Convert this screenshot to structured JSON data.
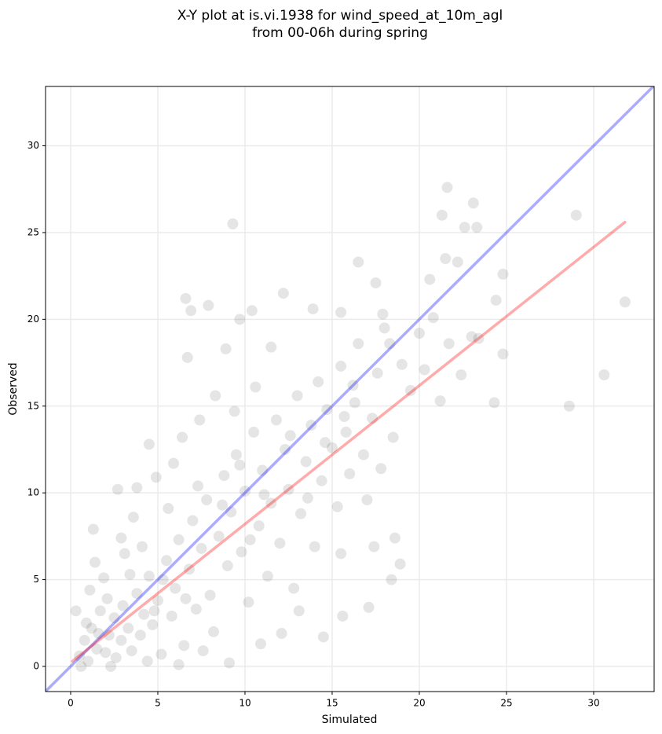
{
  "chart_data": {
    "type": "scatter",
    "title": [
      "X-Y plot at is.vi.1938 for wind_speed_at_10m_agl",
      "from 00-06h during spring"
    ],
    "xlabel": "Simulated",
    "ylabel": "Observed",
    "xlim": [
      -1.44,
      33.47
    ],
    "ylim": [
      -1.45,
      33.42
    ],
    "xticks": [
      0,
      5,
      10,
      15,
      20,
      25,
      30
    ],
    "yticks": [
      0,
      5,
      10,
      15,
      20,
      25,
      30
    ],
    "grid": true,
    "series": [
      {
        "type": "scatter",
        "color": "#000000",
        "alpha": 0.1,
        "x": [
          0.5,
          0.8,
          1,
          1.2,
          1.5,
          1.7,
          2,
          2.2,
          2.5,
          2.6,
          2.9,
          3,
          3.3,
          3.5,
          3.8,
          4,
          4.2,
          4.5,
          4.7,
          5,
          5.2,
          5.5,
          5.8,
          6,
          6.2,
          6.5,
          6.8,
          7,
          7.2,
          7.5,
          7.8,
          8,
          8.2,
          8.5,
          8.8,
          9,
          9.2,
          9.5,
          9.8,
          10,
          10.2,
          10.5,
          10.8,
          11,
          11.3,
          11.5,
          11.8,
          12,
          12.3,
          12.5,
          12.8,
          13,
          13.2,
          13.5,
          13.8,
          14,
          14.2,
          14.4,
          14.7,
          15,
          15.3,
          15.5,
          15.8,
          16,
          16.3,
          16.5,
          16.8,
          17,
          17.3,
          17.6,
          17.8,
          18,
          18.5,
          19,
          19.5,
          20,
          20.3,
          20.8,
          21.2,
          21.7,
          22.4,
          23,
          23.4,
          24.4,
          0.3,
          0.6,
          1.1,
          1.9,
          2.3,
          3.1,
          4.4,
          5.6,
          6.4,
          7.4,
          8.3,
          8.9,
          9.4,
          10.6,
          11.5,
          6.2,
          7.6,
          9.1,
          10.9,
          12.1,
          3.6,
          4.9,
          5.9,
          2.9,
          0.9,
          1.6,
          2.1,
          3.4,
          4.1,
          4.8,
          5.3,
          6.6,
          7.3,
          8.7,
          9.7,
          10.3,
          11.1,
          12.6,
          13.6,
          14.6,
          15.7,
          16.2,
          17.9,
          18.3,
          9.3,
          21.3,
          21.6,
          22.6,
          23.1,
          23.3,
          29,
          31.8,
          30.6,
          28.6,
          24.3,
          24.8,
          24.8,
          16.5,
          12.2,
          6.6,
          7.9,
          6.9,
          10.4,
          9.7,
          13.9,
          15.5,
          17.5,
          20.6,
          21.5,
          22.2,
          1.3,
          1.4,
          3.8,
          2.7,
          4.5,
          6.7,
          15.6,
          14.5,
          13.1,
          17.1,
          18.4,
          18.9,
          17.4,
          18.6,
          15.5
        ],
        "values": [
          0.6,
          1.5,
          0.3,
          2.2,
          1,
          3.2,
          0.8,
          1.8,
          2.8,
          0.5,
          1.5,
          3.5,
          2.2,
          0.9,
          4.2,
          1.8,
          3,
          5.2,
          2.4,
          3.8,
          0.7,
          6.1,
          2.9,
          4.5,
          7.3,
          1.2,
          5.6,
          8.4,
          3.3,
          6.8,
          9.6,
          4.1,
          2,
          7.5,
          11,
          5.8,
          8.9,
          12.2,
          6.6,
          10.1,
          3.7,
          13.5,
          8.1,
          11.3,
          5.2,
          9.4,
          14.2,
          7.1,
          12.5,
          10.2,
          4.5,
          15.6,
          8.8,
          11.8,
          13.9,
          6.9,
          16.4,
          10.7,
          14.8,
          12.6,
          9.2,
          17.3,
          13.5,
          11.1,
          15.2,
          18.6,
          12.2,
          9.6,
          14.3,
          16.9,
          11.4,
          19.5,
          13.2,
          17.4,
          15.9,
          19.2,
          17.1,
          20.1,
          15.3,
          18.6,
          16.8,
          19,
          18.9,
          21.1,
          3.2,
          0,
          4.4,
          5.1,
          0,
          6.5,
          0.3,
          9.1,
          13.2,
          14.2,
          15.6,
          18.3,
          14.7,
          16.1,
          18.4,
          0.1,
          0.9,
          0.2,
          1.3,
          1.9,
          8.6,
          10.9,
          11.7,
          7.4,
          2.5,
          1.9,
          3.9,
          5.3,
          6.9,
          3.2,
          5,
          3.9,
          10.4,
          9.3,
          11.6,
          7.3,
          9.9,
          13.3,
          9.7,
          12.9,
          14.4,
          16.2,
          20.3,
          18.6,
          25.5,
          26,
          27.6,
          25.3,
          26.7,
          25.3,
          26,
          21,
          16.8,
          15,
          15.2,
          18,
          22.6,
          23.3,
          21.5,
          21.2,
          20.8,
          20.5,
          20.5,
          20,
          20.6,
          20.4,
          22.1,
          22.3,
          23.5,
          23.3,
          7.9,
          6,
          10.3,
          10.2,
          12.8,
          17.8,
          2.9,
          1.7,
          3.2,
          3.4,
          5,
          5.9,
          6.9,
          7.4,
          6.5
        ]
      },
      {
        "type": "line",
        "color": "#0000ff",
        "alpha": 0.33,
        "x": [
          -1.44,
          33.47
        ],
        "values": [
          -1.44,
          33.47
        ]
      },
      {
        "type": "line",
        "color": "#ff0000",
        "alpha": 0.33,
        "x": [
          0.1,
          31.8
        ],
        "values": [
          0.3,
          25.6
        ]
      }
    ]
  }
}
